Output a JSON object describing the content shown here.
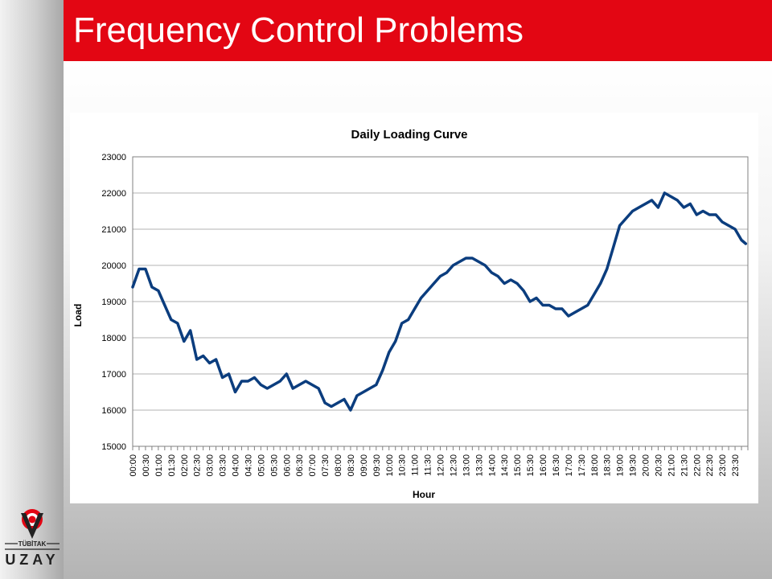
{
  "slide": {
    "title": "Frequency Control Problems",
    "accent_color": "#e30613"
  },
  "logo": {
    "icon": "tubitak-emblem-icon",
    "top_text": "TÜBİTAK",
    "bottom_text": "UZAY"
  },
  "chart_data": {
    "type": "line",
    "title": "Daily Loading Curve",
    "xlabel": "Hour",
    "ylabel": "Load",
    "ylim": [
      15000,
      23000
    ],
    "yticks": [
      15000,
      16000,
      17000,
      18000,
      19000,
      20000,
      21000,
      22000,
      23000
    ],
    "grid": "horizontal",
    "legend": "none",
    "line_color": "#0b3d7e",
    "xticks": [
      "00:00",
      "00:30",
      "01:00",
      "01:30",
      "02:00",
      "02:30",
      "03:00",
      "03:30",
      "04:00",
      "04:30",
      "05:00",
      "05:30",
      "06:00",
      "06:30",
      "07:00",
      "07:30",
      "08:00",
      "08:30",
      "09:00",
      "09:30",
      "10:00",
      "10:30",
      "11:00",
      "11:30",
      "12:00",
      "12:30",
      "13:00",
      "13:30",
      "14:00",
      "14:30",
      "15:00",
      "15:30",
      "16:00",
      "16:30",
      "17:00",
      "17:30",
      "18:00",
      "18:30",
      "19:00",
      "19:30",
      "20:00",
      "20:30",
      "21:00",
      "21:30",
      "22:00",
      "22:30",
      "23:00",
      "23:30"
    ],
    "series": [
      {
        "x": [
          "00:00",
          "00:15",
          "00:30",
          "00:45",
          "01:00",
          "01:15",
          "01:30",
          "01:45",
          "02:00",
          "02:15",
          "02:30",
          "02:45",
          "03:00",
          "03:15",
          "03:30",
          "03:45",
          "04:00",
          "04:15",
          "04:30",
          "04:45",
          "05:00",
          "05:15",
          "05:30",
          "05:45",
          "06:00",
          "06:15",
          "06:30",
          "06:45",
          "07:00",
          "07:15",
          "07:30",
          "07:45",
          "08:00",
          "08:15",
          "08:30",
          "08:45",
          "09:00",
          "09:15",
          "09:30",
          "09:45",
          "10:00",
          "10:15",
          "10:30",
          "10:45",
          "11:00",
          "11:15",
          "11:30",
          "11:45",
          "12:00",
          "12:15",
          "12:30",
          "12:45",
          "13:00",
          "13:15",
          "13:30",
          "13:45",
          "14:00",
          "14:15",
          "14:30",
          "14:45",
          "15:00",
          "15:15",
          "15:30",
          "15:45",
          "16:00",
          "16:15",
          "16:30",
          "16:45",
          "17:00",
          "17:15",
          "17:30",
          "17:45",
          "18:00",
          "18:15",
          "18:30",
          "18:45",
          "19:00",
          "19:15",
          "19:30",
          "19:45",
          "20:00",
          "20:15",
          "20:30",
          "20:45",
          "21:00",
          "21:15",
          "21:30",
          "21:45",
          "22:00",
          "22:15",
          "22:30",
          "22:45",
          "23:00",
          "23:15",
          "23:30",
          "23:45",
          "23:55"
        ],
        "values": [
          19400,
          19900,
          19900,
          19400,
          19300,
          18900,
          18500,
          18400,
          17900,
          18200,
          17400,
          17500,
          17300,
          17400,
          16900,
          17000,
          16500,
          16800,
          16800,
          16900,
          16700,
          16600,
          16700,
          16800,
          17000,
          16600,
          16700,
          16800,
          16700,
          16600,
          16200,
          16100,
          16200,
          16300,
          16000,
          16400,
          16500,
          16600,
          16700,
          17100,
          17600,
          17900,
          18400,
          18500,
          18800,
          19100,
          19300,
          19500,
          19700,
          19800,
          20000,
          20100,
          20200,
          20200,
          20100,
          20000,
          19800,
          19700,
          19500,
          19600,
          19500,
          19300,
          19000,
          19100,
          18900,
          18900,
          18800,
          18800,
          18600,
          18700,
          18800,
          18900,
          19200,
          19500,
          19900,
          20500,
          21100,
          21300,
          21500,
          21600,
          21700,
          21800,
          21600,
          22000,
          21900,
          21800,
          21600,
          21700,
          21400,
          21500,
          21400,
          21400,
          21200,
          21100,
          21000,
          20700,
          20600
        ]
      }
    ]
  }
}
